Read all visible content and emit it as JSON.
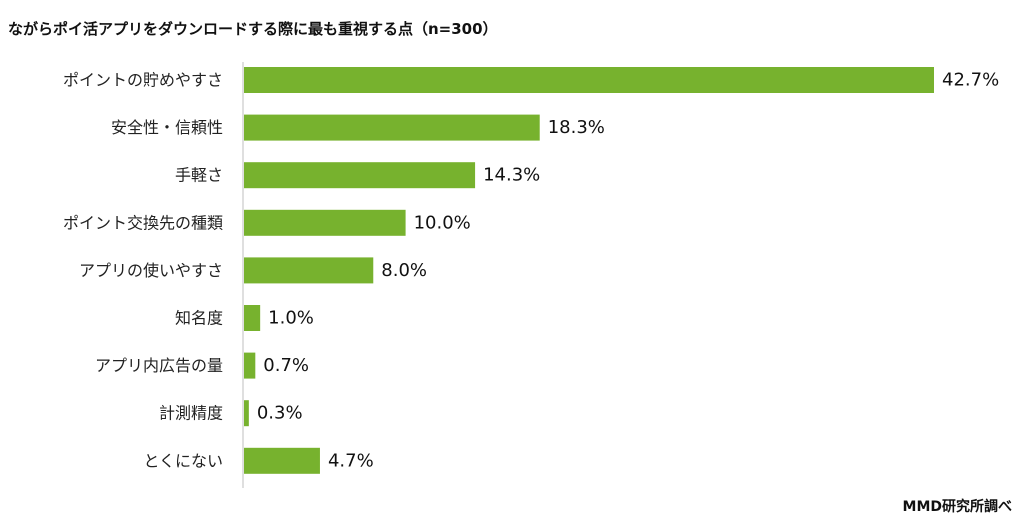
{
  "chart_data": {
    "type": "bar",
    "orientation": "horizontal",
    "title": "ながらポイ活アプリをダウンロードする際に最も重視する点（n=300）",
    "categories": [
      "ポイントの貯めやすさ",
      "安全性・信頼性",
      "手軽さ",
      "ポイント交換先の種類",
      "アプリの使いやすさ",
      "知名度",
      "アプリ内広告の量",
      "計測精度",
      "とくにない"
    ],
    "values": [
      42.7,
      18.3,
      14.3,
      10.0,
      8.0,
      1.0,
      0.7,
      0.3,
      4.7
    ],
    "value_labels": [
      "42.7%",
      "18.3%",
      "14.3%",
      "10.0%",
      "8.0%",
      "1.0%",
      "0.7%",
      "0.3%",
      "4.7%"
    ],
    "xlim": [
      0,
      45
    ],
    "grid": false,
    "bar_color": "#77b22e",
    "source": "MMD研究所調べ"
  }
}
